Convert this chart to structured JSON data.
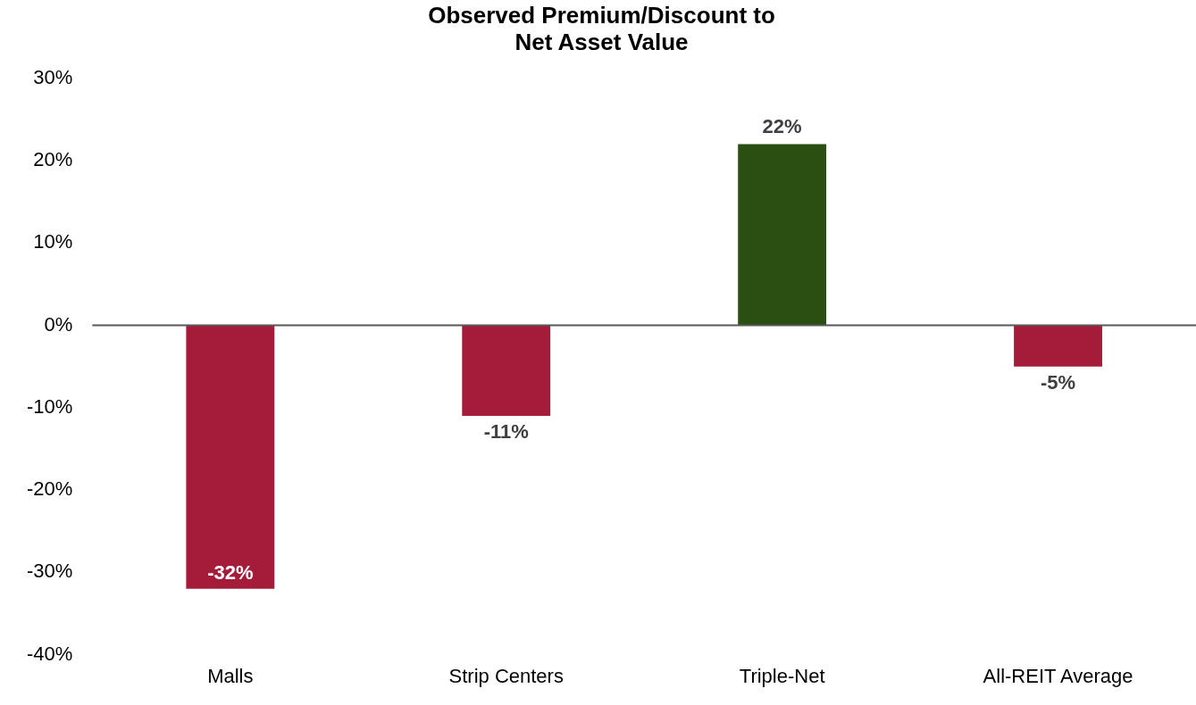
{
  "chart_data": {
    "type": "bar",
    "title": "Observed Premium/Discount to\nNet Asset Value",
    "categories": [
      "Malls",
      "Strip Centers",
      "Triple-Net",
      "All-REIT Average"
    ],
    "values": [
      -32,
      -11,
      22,
      -5
    ],
    "colors": [
      "#a51c3a",
      "#a51c3a",
      "#2b4f13",
      "#a51c3a"
    ],
    "ylim": [
      -40,
      30
    ],
    "yticks": [
      {
        "value": -40,
        "label": "-40%"
      },
      {
        "value": -30,
        "label": "-30%"
      },
      {
        "value": -20,
        "label": "-20%"
      },
      {
        "value": -10,
        "label": "-10%"
      },
      {
        "value": 0,
        "label": "0%"
      },
      {
        "value": 10,
        "label": "10%"
      },
      {
        "value": 20,
        "label": "20%"
      },
      {
        "value": 30,
        "label": "30%"
      }
    ],
    "value_labels": [
      "-32%",
      "-11%",
      "22%",
      "-5%"
    ],
    "ref_lines": [
      {
        "axis": "y",
        "value": 0,
        "color": "#595959"
      }
    ],
    "grid": false,
    "legend": false
  }
}
